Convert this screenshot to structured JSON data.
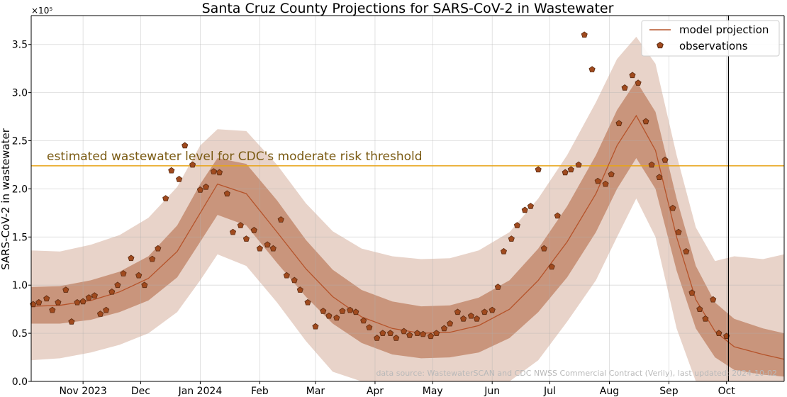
{
  "chart_data": {
    "type": "line",
    "title": "Santa Cruz County Projections for SARS-CoV-2 in Wastewater",
    "ylabel": "SARS-CoV-2 in wastewater",
    "y_multiplier_label": "×10⁵",
    "xlim": [
      "2023-10-05",
      "2024-10-31"
    ],
    "ylim": [
      0,
      3.8
    ],
    "y_ticks": [
      "0.0",
      "0.5",
      "1.0",
      "1.5",
      "2.0",
      "2.5",
      "3.0",
      "3.5"
    ],
    "x_ticks": [
      {
        "date": "2023-11-01",
        "label": "Nov 2023"
      },
      {
        "date": "2023-12-01",
        "label": "Dec"
      },
      {
        "date": "2024-01-01",
        "label": "Jan 2024"
      },
      {
        "date": "2024-02-01",
        "label": "Feb"
      },
      {
        "date": "2024-03-01",
        "label": "Mar"
      },
      {
        "date": "2024-04-01",
        "label": "Apr"
      },
      {
        "date": "2024-05-01",
        "label": "May"
      },
      {
        "date": "2024-06-01",
        "label": "Jun"
      },
      {
        "date": "2024-07-01",
        "label": "Jul"
      },
      {
        "date": "2024-08-01",
        "label": "Aug"
      },
      {
        "date": "2024-09-01",
        "label": "Sep"
      },
      {
        "date": "2024-10-01",
        "label": "Oct"
      }
    ],
    "grid": true,
    "legend_placement": "top-right",
    "threshold": {
      "value": 2.24,
      "label": "estimated wastewater level for CDC's moderate risk threshold",
      "color": "#e8a317"
    },
    "vertical_line_date": "2024-10-02",
    "source_note": "data source: WastewaterSCAN and CDC NWSS Commercial Contract (Verily), last updated: 2024-10-02",
    "colors": {
      "line": "#b5532a",
      "marker": "#a04a1e",
      "marker_edge": "#5a2a10",
      "band_inner": "#c9957c",
      "band_outer": "#e8d3c9"
    },
    "series": [
      {
        "name": "model projection",
        "x": [
          "2023-10-05",
          "2023-10-20",
          "2023-11-05",
          "2023-11-20",
          "2023-12-05",
          "2023-12-20",
          "2024-01-01",
          "2024-01-10",
          "2024-01-25",
          "2024-02-10",
          "2024-02-25",
          "2024-03-10",
          "2024-03-25",
          "2024-04-10",
          "2024-04-25",
          "2024-05-10",
          "2024-05-25",
          "2024-06-10",
          "2024-06-25",
          "2024-07-10",
          "2024-07-25",
          "2024-08-05",
          "2024-08-15",
          "2024-08-25",
          "2024-09-05",
          "2024-09-15",
          "2024-09-25",
          "2024-10-05",
          "2024-10-20",
          "2024-10-31"
        ],
        "values": [
          0.78,
          0.79,
          0.84,
          0.93,
          1.07,
          1.35,
          1.75,
          2.05,
          1.95,
          1.55,
          1.17,
          0.88,
          0.67,
          0.55,
          0.5,
          0.51,
          0.58,
          0.75,
          1.05,
          1.45,
          1.95,
          2.45,
          2.76,
          2.4,
          1.5,
          0.85,
          0.52,
          0.36,
          0.28,
          0.23
        ]
      },
      {
        "name": "inner band lower",
        "x": [
          "2023-10-05",
          "2023-10-20",
          "2023-11-05",
          "2023-11-20",
          "2023-12-05",
          "2023-12-20",
          "2024-01-01",
          "2024-01-10",
          "2024-01-25",
          "2024-02-10",
          "2024-02-25",
          "2024-03-10",
          "2024-03-25",
          "2024-04-10",
          "2024-04-25",
          "2024-05-10",
          "2024-05-25",
          "2024-06-10",
          "2024-06-25",
          "2024-07-10",
          "2024-07-25",
          "2024-08-05",
          "2024-08-15",
          "2024-08-25",
          "2024-09-05",
          "2024-09-15",
          "2024-09-25",
          "2024-10-05",
          "2024-10-20",
          "2024-10-31"
        ],
        "values": [
          0.6,
          0.6,
          0.64,
          0.72,
          0.84,
          1.08,
          1.45,
          1.73,
          1.62,
          1.23,
          0.88,
          0.6,
          0.4,
          0.28,
          0.24,
          0.25,
          0.3,
          0.45,
          0.72,
          1.08,
          1.55,
          2.0,
          2.32,
          2.0,
          1.15,
          0.55,
          0.25,
          0.12,
          0.07,
          0.05
        ]
      },
      {
        "name": "inner band upper",
        "x": [
          "2023-10-05",
          "2023-10-20",
          "2023-11-05",
          "2023-11-20",
          "2023-12-05",
          "2023-12-20",
          "2024-01-01",
          "2024-01-10",
          "2024-01-25",
          "2024-02-10",
          "2024-02-25",
          "2024-03-10",
          "2024-03-25",
          "2024-04-10",
          "2024-04-25",
          "2024-05-10",
          "2024-05-25",
          "2024-06-10",
          "2024-06-25",
          "2024-07-10",
          "2024-07-25",
          "2024-08-05",
          "2024-08-15",
          "2024-08-25",
          "2024-09-05",
          "2024-09-15",
          "2024-09-25",
          "2024-10-05",
          "2024-10-20",
          "2024-10-31"
        ],
        "values": [
          0.98,
          0.99,
          1.05,
          1.14,
          1.3,
          1.62,
          2.05,
          2.32,
          2.26,
          1.88,
          1.47,
          1.16,
          0.95,
          0.83,
          0.78,
          0.79,
          0.87,
          1.05,
          1.38,
          1.82,
          2.35,
          2.82,
          3.12,
          2.8,
          1.9,
          1.2,
          0.82,
          0.65,
          0.55,
          0.5
        ]
      },
      {
        "name": "outer band lower",
        "x": [
          "2023-10-05",
          "2023-10-20",
          "2023-11-05",
          "2023-11-20",
          "2023-12-05",
          "2023-12-20",
          "2024-01-01",
          "2024-01-10",
          "2024-01-25",
          "2024-02-10",
          "2024-02-25",
          "2024-03-10",
          "2024-03-25",
          "2024-04-10",
          "2024-04-25",
          "2024-05-10",
          "2024-05-25",
          "2024-06-10",
          "2024-06-25",
          "2024-07-10",
          "2024-07-25",
          "2024-08-05",
          "2024-08-15",
          "2024-08-25",
          "2024-09-05",
          "2024-09-15",
          "2024-09-25",
          "2024-10-05",
          "2024-10-20",
          "2024-10-31"
        ],
        "values": [
          0.22,
          0.24,
          0.3,
          0.38,
          0.5,
          0.72,
          1.05,
          1.32,
          1.2,
          0.82,
          0.42,
          0.1,
          0,
          0,
          0,
          0,
          0,
          0,
          0.22,
          0.62,
          1.05,
          1.5,
          1.9,
          1.5,
          0.55,
          0,
          0,
          0,
          0,
          0
        ]
      },
      {
        "name": "outer band upper",
        "x": [
          "2023-10-05",
          "2023-10-20",
          "2023-11-05",
          "2023-11-20",
          "2023-12-05",
          "2023-12-20",
          "2024-01-01",
          "2024-01-10",
          "2024-01-25",
          "2024-02-10",
          "2024-02-25",
          "2024-03-10",
          "2024-03-25",
          "2024-04-10",
          "2024-04-25",
          "2024-05-10",
          "2024-05-25",
          "2024-06-10",
          "2024-06-25",
          "2024-07-10",
          "2024-07-25",
          "2024-08-05",
          "2024-08-15",
          "2024-08-25",
          "2024-09-05",
          "2024-09-15",
          "2024-09-25",
          "2024-10-05",
          "2024-10-20",
          "2024-10-31"
        ],
        "values": [
          1.36,
          1.35,
          1.42,
          1.52,
          1.7,
          2.02,
          2.45,
          2.62,
          2.6,
          2.25,
          1.85,
          1.56,
          1.38,
          1.3,
          1.27,
          1.28,
          1.36,
          1.55,
          1.9,
          2.35,
          2.9,
          3.35,
          3.58,
          3.3,
          2.35,
          1.6,
          1.25,
          1.3,
          1.27,
          1.32
        ]
      },
      {
        "name": "observations",
        "x": [
          "2023-10-06",
          "2023-10-09",
          "2023-10-13",
          "2023-10-16",
          "2023-10-19",
          "2023-10-23",
          "2023-10-26",
          "2023-10-29",
          "2023-11-01",
          "2023-11-04",
          "2023-11-07",
          "2023-11-10",
          "2023-11-13",
          "2023-11-16",
          "2023-11-19",
          "2023-11-22",
          "2023-11-26",
          "2023-11-30",
          "2023-12-03",
          "2023-12-07",
          "2023-12-10",
          "2023-12-14",
          "2023-12-17",
          "2023-12-21",
          "2023-12-24",
          "2023-12-28",
          "2024-01-01",
          "2024-01-04",
          "2024-01-08",
          "2024-01-11",
          "2024-01-15",
          "2024-01-18",
          "2024-01-22",
          "2024-01-25",
          "2024-01-29",
          "2024-02-01",
          "2024-02-05",
          "2024-02-08",
          "2024-02-12",
          "2024-02-15",
          "2024-02-19",
          "2024-02-22",
          "2024-02-26",
          "2024-03-01",
          "2024-03-05",
          "2024-03-08",
          "2024-03-12",
          "2024-03-15",
          "2024-03-19",
          "2024-03-22",
          "2024-03-26",
          "2024-03-29",
          "2024-04-02",
          "2024-04-05",
          "2024-04-09",
          "2024-04-12",
          "2024-04-16",
          "2024-04-19",
          "2024-04-23",
          "2024-04-26",
          "2024-04-30",
          "2024-05-03",
          "2024-05-07",
          "2024-05-10",
          "2024-05-14",
          "2024-05-17",
          "2024-05-21",
          "2024-05-24",
          "2024-05-28",
          "2024-06-01",
          "2024-06-04",
          "2024-06-07",
          "2024-06-11",
          "2024-06-14",
          "2024-06-18",
          "2024-06-21",
          "2024-06-25",
          "2024-06-28",
          "2024-07-02",
          "2024-07-05",
          "2024-07-09",
          "2024-07-12",
          "2024-07-16",
          "2024-07-19",
          "2024-07-23",
          "2024-07-26",
          "2024-07-30",
          "2024-08-02",
          "2024-08-06",
          "2024-08-09",
          "2024-08-13",
          "2024-08-16",
          "2024-08-20",
          "2024-08-23",
          "2024-08-27",
          "2024-08-30",
          "2024-09-03",
          "2024-09-06",
          "2024-09-10",
          "2024-09-13",
          "2024-09-17",
          "2024-09-20",
          "2024-09-24",
          "2024-09-27",
          "2024-10-01"
        ],
        "values": [
          0.8,
          0.82,
          0.86,
          0.74,
          0.82,
          0.95,
          0.62,
          0.82,
          0.83,
          0.87,
          0.89,
          0.7,
          0.74,
          0.93,
          1.0,
          1.12,
          1.28,
          1.1,
          1.0,
          1.27,
          1.38,
          1.9,
          2.19,
          2.1,
          2.45,
          2.25,
          1.99,
          2.02,
          2.18,
          2.17,
          1.95,
          1.55,
          1.62,
          1.48,
          1.57,
          1.38,
          1.42,
          1.38,
          1.68,
          1.1,
          1.05,
          0.95,
          0.82,
          0.57,
          0.73,
          0.68,
          0.66,
          0.73,
          0.74,
          0.72,
          0.63,
          0.56,
          0.45,
          0.5,
          0.5,
          0.45,
          0.52,
          0.48,
          0.5,
          0.49,
          0.47,
          0.5,
          0.55,
          0.6,
          0.72,
          0.65,
          0.68,
          0.65,
          0.72,
          0.74,
          0.98,
          1.35,
          1.48,
          1.62,
          1.78,
          1.82,
          2.2,
          1.38,
          1.19,
          1.72,
          2.17,
          2.2,
          2.25,
          3.6,
          3.24,
          2.08,
          2.05,
          2.15,
          2.68,
          3.05,
          3.18,
          3.1,
          2.7,
          2.25,
          2.12,
          2.3,
          1.8,
          1.55,
          1.35,
          0.92,
          0.75,
          0.65,
          0.85,
          0.5,
          0.47
        ]
      }
    ]
  }
}
